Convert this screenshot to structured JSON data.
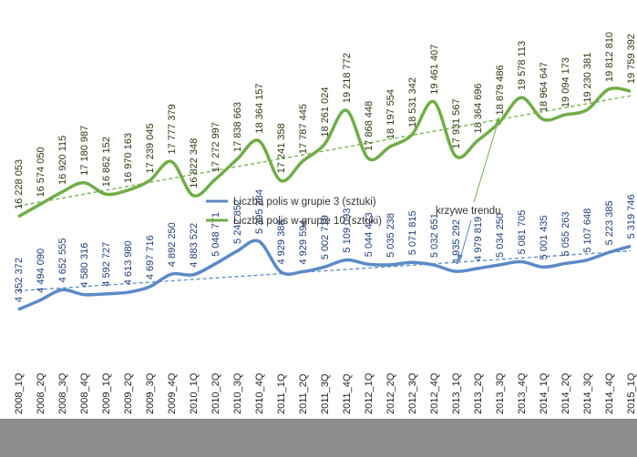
{
  "chart_data": {
    "type": "line",
    "categories": [
      "2008_1Q",
      "2008_2Q",
      "2008_3Q",
      "2008_4Q",
      "2009_1Q",
      "2009_2Q",
      "2009_3Q",
      "2009_4Q",
      "2010_1Q",
      "2010_2Q",
      "2010_3Q",
      "2010_4Q",
      "2011_1Q",
      "2011_2Q",
      "2011_3Q",
      "2011_4Q",
      "2012_1Q",
      "2012_2Q",
      "2012_3Q",
      "2012_4Q",
      "2013_1Q",
      "2013_2Q",
      "2013_3Q",
      "2013_4Q",
      "2014_1Q",
      "2014_2Q",
      "2014_3Q",
      "2014_4Q",
      "2015_1Q"
    ],
    "series": [
      {
        "name": "Liczba polis w grupie 3 (sztuki)",
        "color": "#5b8ac6",
        "values": [
          4352372,
          4494090,
          4652555,
          4580316,
          4592727,
          4613980,
          4697716,
          4892250,
          4883522,
          5048771,
          5242852,
          5395284,
          4929388,
          4929594,
          5002719,
          5109093,
          5044423,
          5035238,
          5071815,
          5032651,
          4935292,
          4979819,
          5034250,
          5081705,
          5001435,
          5055263,
          5107648,
          5223385,
          5319746
        ],
        "labels": [
          "4 352 372",
          "4 494 090",
          "4 652 555",
          "4 580 316",
          "4 592 727",
          "4 613 980",
          "4 697 716",
          "4 892 250",
          "4 883 522",
          "5 048 771",
          "5 242 852",
          "5 395 284",
          "4 929 388",
          "4 929 594",
          "5 002 719",
          "5 109 093",
          "5 044 423",
          "5 035 238",
          "5 071 815",
          "5 032 651",
          "4 935 292",
          "4 979 819",
          "5 034 250",
          "5 081 705",
          "5 001 435",
          "5 055 263",
          "5 107 648",
          "5 223 385",
          "5 319 746"
        ]
      },
      {
        "name": "Liczba polis w grupie 10 (sztuki)",
        "color": "#70ad47",
        "values": [
          16228053,
          16574050,
          16920115,
          17180987,
          16862152,
          16970163,
          17239045,
          17777379,
          16822348,
          17272997,
          17838663,
          18364157,
          17241358,
          17787445,
          18261024,
          19218772,
          17868448,
          18197554,
          18531342,
          19461407,
          17931567,
          18364696,
          18879486,
          19578113,
          18964647,
          19094173,
          19230381,
          19812810,
          19759392
        ],
        "labels": [
          "16 228 053",
          "16 574 050",
          "16 920 115",
          "17 180 987",
          "16 862 152",
          "16 970 163",
          "17 239 045",
          "17 777 379",
          "16 822 348",
          "17 272 997",
          "17 838 663",
          "18 364 157",
          "17 241 358",
          "17 787 445",
          "18 261 024",
          "19 218 772",
          "17 868 448",
          "18 197 554",
          "18 531 342",
          "19 461 407",
          "17 931 567",
          "18 364 696",
          "18 879 486",
          "19 578 113",
          "18 964 647",
          "19 094 173",
          "19 230 381",
          "19 812 810",
          "19 759 392"
        ]
      }
    ],
    "annotation": "krzywe trendu",
    "legend_position": "center",
    "trendlines": "linear, dashed",
    "grid": false
  }
}
